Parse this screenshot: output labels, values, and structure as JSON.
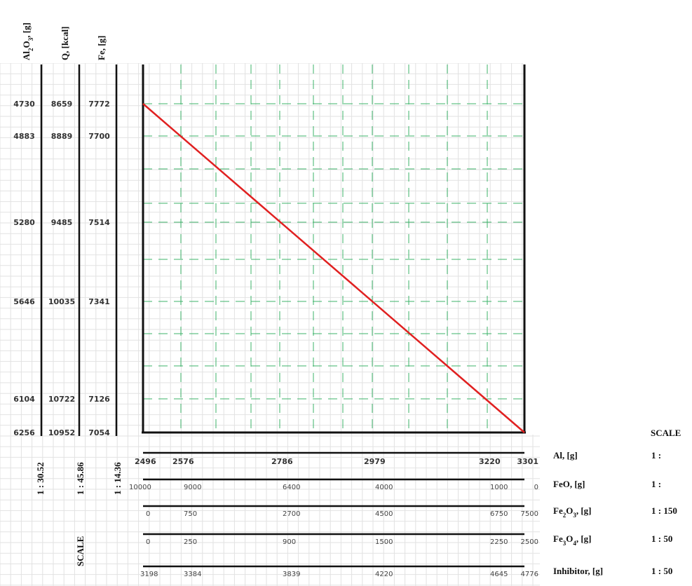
{
  "chart_data": {
    "type": "line",
    "series": [
      {
        "name": "",
        "x": [
          2496,
          3301
        ],
        "y": [
          7772,
          7054
        ],
        "color": "#e02020"
      }
    ],
    "grid": true,
    "left_axes": [
      {
        "title_html": "Al<tspan baseline-shift='sub' font-size='9'>2</tspan>O<tspan baseline-shift='sub' font-size='9'>3</tspan>, [g]",
        "title": "Al2O3, [g]",
        "values": [
          "4730",
          "4883",
          "5280",
          "5646",
          "6104",
          "6256"
        ],
        "scale": "1 : 30.52"
      },
      {
        "title": "Q, [kcal]",
        "values": [
          "8659",
          "8889",
          "9485",
          "10035",
          "10722",
          "10952"
        ],
        "scale": "1 : 45.86"
      },
      {
        "title": "Fe, [g]",
        "values": [
          "7772",
          "7700",
          "7514",
          "7341",
          "7126",
          "7054"
        ],
        "scale": "1 : 14.36"
      }
    ],
    "left_scale_label": "SCALE",
    "bottom_axes": [
      {
        "label": "Al, [g]",
        "ticks": [
          "2496",
          "2576",
          "2786",
          "2979",
          "3220",
          "3301"
        ],
        "scale": "1 :"
      },
      {
        "label": "FeO, [g]",
        "ticks": [
          "10000",
          "9000",
          "6400",
          "4000",
          "1000",
          "0"
        ],
        "scale": "1 :"
      },
      {
        "label_main": "Fe",
        "label_sub": "2",
        "label_mid": "O",
        "label_sub2": "3",
        "label_tail": ", [g]",
        "label": "Fe2O3, [g]",
        "ticks": [
          "0",
          "750",
          "2700",
          "4500",
          "6750",
          "7500"
        ],
        "scale": "1 : 150"
      },
      {
        "label_main": "Fe",
        "label_sub": "3",
        "label_mid": "O",
        "label_sub2": "4",
        "label_tail": ",  [g]",
        "label": "Fe3O4, [g]",
        "ticks": [
          "0",
          "250",
          "900",
          "1500",
          "2250",
          "2500"
        ],
        "scale": "1 : 50"
      },
      {
        "label": "Inhibitor, [g]",
        "ticks": [
          "3198",
          "3384",
          "3839",
          "4220",
          "4645",
          "4776"
        ],
        "scale": "1 : 50"
      }
    ],
    "bottom_scale_header": "SCALE"
  }
}
